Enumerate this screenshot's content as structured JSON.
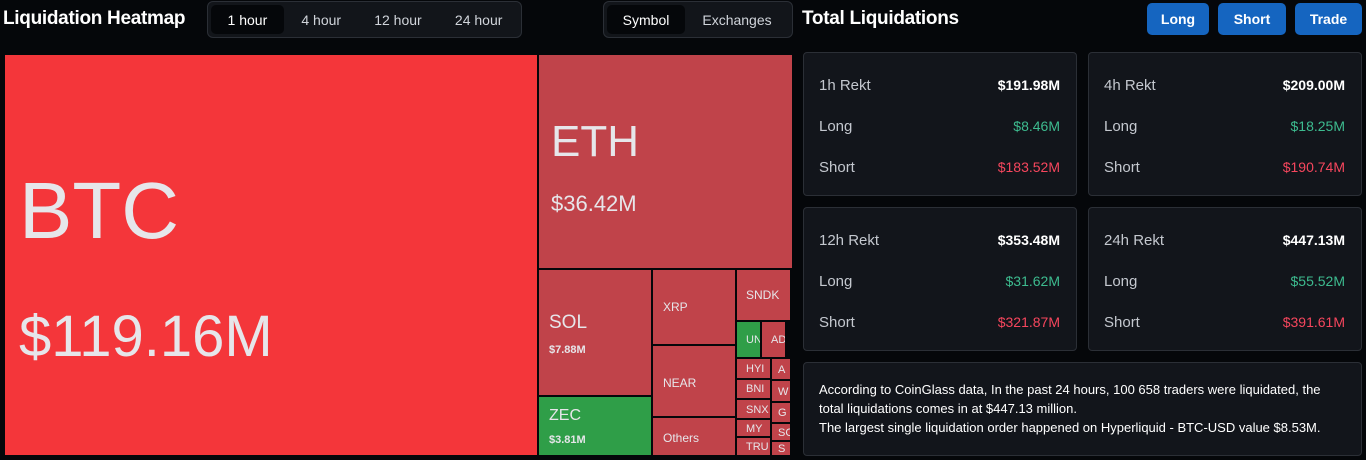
{
  "heatmap": {
    "title": "Liquidation Heatmap",
    "timeframes": [
      "1 hour",
      "4 hour",
      "12 hour",
      "24 hour"
    ],
    "selected_timeframe": 0,
    "views": [
      "Symbol",
      "Exchanges"
    ],
    "selected_view": 0,
    "tiles": [
      {
        "symbol": "BTC",
        "amount": "$119.16M",
        "color": "#f4363a"
      },
      {
        "symbol": "ETH",
        "amount": "$36.42M",
        "color": "#c0434a"
      },
      {
        "symbol": "SOL",
        "amount": "$7.88M",
        "color": "#c0434a"
      },
      {
        "symbol": "ZEC",
        "amount": "$3.81M",
        "color": "#2f9e48"
      },
      {
        "symbol": "XRP",
        "color": "#c0434a"
      },
      {
        "symbol": "NEAR",
        "color": "#c0434a"
      },
      {
        "symbol": "Others",
        "color": "#c0434a"
      },
      {
        "symbol": "SNDK",
        "color": "#c0434a"
      },
      {
        "symbol": "UN",
        "color": "#2f9e48"
      },
      {
        "symbol": "AD",
        "color": "#c0434a"
      },
      {
        "symbol": "HYI",
        "color": "#c0434a"
      },
      {
        "symbol": "A",
        "color": "#c0434a"
      },
      {
        "symbol": "BNI",
        "color": "#c0434a"
      },
      {
        "symbol": "W",
        "color": "#c0434a"
      },
      {
        "symbol": "SNX",
        "color": "#c0434a"
      },
      {
        "symbol": "G",
        "color": "#c0434a"
      },
      {
        "symbol": "MY",
        "color": "#c0434a"
      },
      {
        "symbol": "SC",
        "color": "#c0434a"
      },
      {
        "symbol": "TRU",
        "color": "#c0434a"
      },
      {
        "symbol": "S",
        "color": "#c0434a"
      }
    ]
  },
  "totals": {
    "title": "Total Liquidations",
    "buttons": [
      "Long",
      "Short",
      "Trade"
    ],
    "cards": [
      {
        "title": "1h Rekt",
        "total": "$191.98M",
        "rows": [
          {
            "label": "Long",
            "value": "$8.46M"
          },
          {
            "label": "Short",
            "value": "$183.52M"
          }
        ]
      },
      {
        "title": "4h Rekt",
        "total": "$209.00M",
        "rows": [
          {
            "label": "Long",
            "value": "$18.25M"
          },
          {
            "label": "Short",
            "value": "$190.74M"
          }
        ]
      },
      {
        "title": "12h Rekt",
        "total": "$353.48M",
        "rows": [
          {
            "label": "Long",
            "value": "$31.62M"
          },
          {
            "label": "Short",
            "value": "$321.87M"
          }
        ]
      },
      {
        "title": "24h Rekt",
        "total": "$447.13M",
        "rows": [
          {
            "label": "Long",
            "value": "$55.52M"
          },
          {
            "label": "Short",
            "value": "$391.61M"
          }
        ]
      }
    ],
    "note": [
      "According to CoinGlass data, In the past 24 hours, 100 658 traders were liquidated, the total liquidations comes in at $447.13 million.",
      "The largest single liquidation order happened on Hyperliquid - BTC-USD value $8.53M."
    ]
  }
}
